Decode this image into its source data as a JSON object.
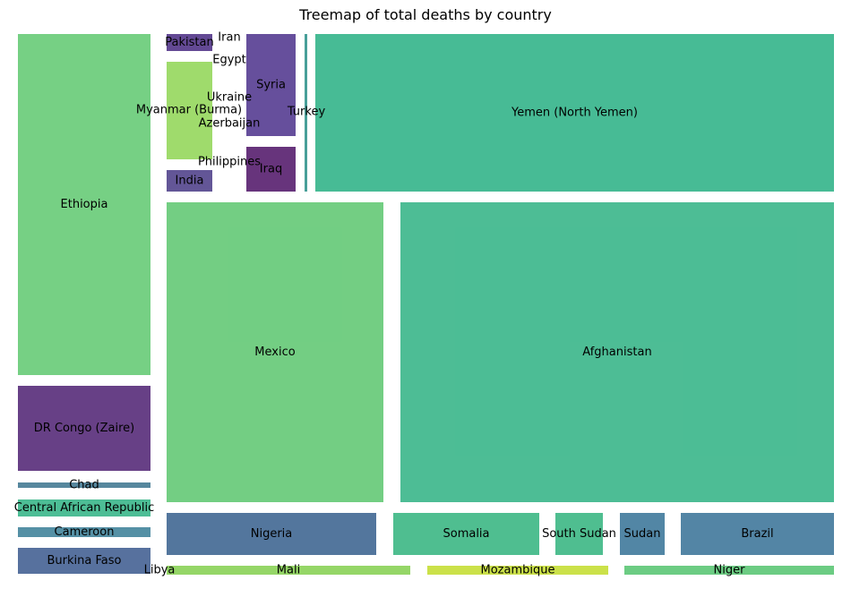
{
  "chart_data": {
    "type": "treemap",
    "title": "Treemap of total deaths by country",
    "units": "relative area (approximate share of total deaths)",
    "cells": [
      {
        "label": "Ethiopia",
        "value": 5.9,
        "color": "#6fcd7d"
      },
      {
        "label": "DR Congo (Zaire)",
        "value": 1.47,
        "color": "#5f367f"
      },
      {
        "label": "Chad",
        "value": 0.09,
        "color": "#4d8199"
      },
      {
        "label": "Central African Republic",
        "value": 0.29,
        "color": "#43b98f"
      },
      {
        "label": "Cameroon",
        "value": 0.16,
        "color": "#4c8aa0"
      },
      {
        "label": "Burkina Faso",
        "value": 0.46,
        "color": "#4e6999"
      },
      {
        "label": "Pakistan",
        "value": 0.1,
        "color": "#5b3f8e"
      },
      {
        "label": "Myanmar (Burma)",
        "value": 0.58,
        "color": "#9ad964"
      },
      {
        "label": "India",
        "value": 0.12,
        "color": "#5b4d91"
      },
      {
        "label": "Iran",
        "value": 0.0,
        "color": "#4e6999"
      },
      {
        "label": "Egypt",
        "value": 0.0,
        "color": "#4e6999"
      },
      {
        "label": "Ukraine",
        "value": 0.0,
        "color": "#4e6999"
      },
      {
        "label": "Azerbaijan",
        "value": 0.0,
        "color": "#4e6999"
      },
      {
        "label": "Philippines",
        "value": 0.0,
        "color": "#4e6999"
      },
      {
        "label": "Syria",
        "value": 0.66,
        "color": "#5e4697"
      },
      {
        "label": "Iraq",
        "value": 0.29,
        "color": "#5f2975"
      },
      {
        "label": "Turkey",
        "value": 0.05,
        "color": "#3e9a94"
      },
      {
        "label": "Yemen (North Yemen)",
        "value": 10.75,
        "color": "#3db78f"
      },
      {
        "label": "Mexico",
        "value": 8.57,
        "color": "#6bcb7c"
      },
      {
        "label": "Afghanistan",
        "value": 17.0,
        "color": "#43b98f"
      },
      {
        "label": "Nigeria",
        "value": 1.17,
        "color": "#4a6f98"
      },
      {
        "label": "Somalia",
        "value": 0.81,
        "color": "#46ba8a"
      },
      {
        "label": "South Sudan",
        "value": 0.27,
        "color": "#46ba8a"
      },
      {
        "label": "Sudan",
        "value": 0.25,
        "color": "#4980a0"
      },
      {
        "label": "Brazil",
        "value": 0.86,
        "color": "#4a7ea0"
      },
      {
        "label": "Libya",
        "value": 0.0,
        "color": "#4e6999"
      },
      {
        "label": "Mali",
        "value": 0.28,
        "color": "#8fd45f"
      },
      {
        "label": "Mozambique",
        "value": 0.22,
        "color": "#c8df3f"
      },
      {
        "label": "Niger",
        "value": 0.26,
        "color": "#64c97c"
      }
    ]
  }
}
